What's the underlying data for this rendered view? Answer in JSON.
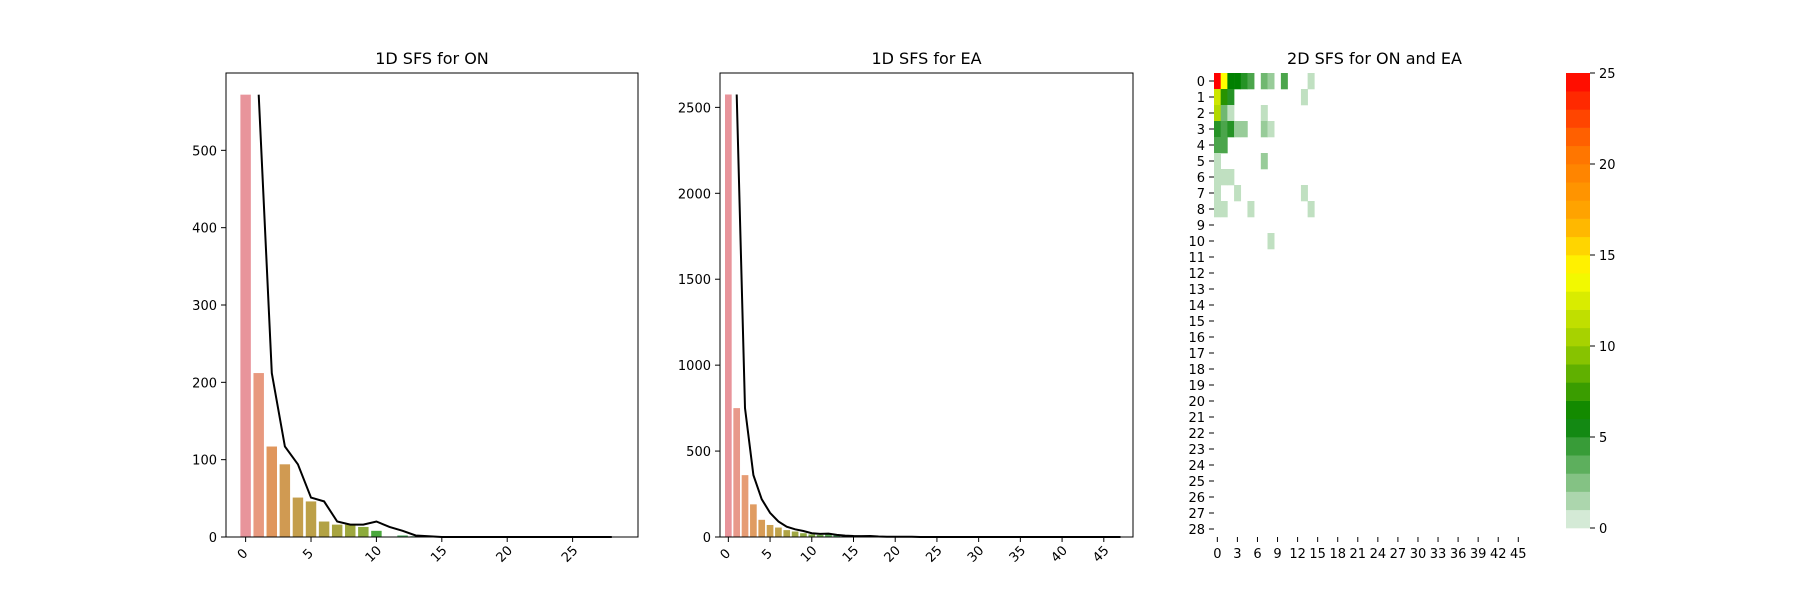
{
  "chart_data": [
    {
      "type": "bar",
      "title": "1D SFS for ON",
      "xlabel": "",
      "ylabel": "",
      "x": [
        0,
        1,
        2,
        3,
        4,
        5,
        6,
        7,
        8,
        9,
        10,
        11,
        12,
        13,
        14,
        15,
        16,
        17,
        18,
        19,
        20,
        21,
        22,
        23,
        24,
        25,
        26,
        27,
        28
      ],
      "values": [
        572,
        212,
        117,
        94,
        51,
        46,
        20,
        16,
        16,
        13,
        8,
        0,
        2,
        1,
        1,
        0,
        0,
        0,
        0,
        0,
        0,
        0,
        0,
        0,
        0,
        0,
        0,
        0,
        0
      ],
      "line": [
        null,
        572,
        212,
        117,
        94,
        51,
        46,
        20,
        16,
        16,
        20,
        13,
        8,
        2,
        1,
        0,
        0,
        0,
        0,
        0,
        0,
        0,
        0,
        0,
        0,
        0,
        0,
        0,
        0
      ],
      "xticks": [
        0,
        5,
        10,
        15,
        20,
        25
      ],
      "yticks": [
        0,
        100,
        200,
        300,
        400,
        500
      ],
      "xlim": [
        -1.5,
        30
      ],
      "ylim": [
        0,
        600
      ],
      "bar_colors": [
        "#e8949b",
        "#e8997f",
        "#e0965c",
        "#d09a52",
        "#c49e4c",
        "#bca048",
        "#b2a244",
        "#a8a440",
        "#9ea73e",
        "#8cab3c",
        "#4aa83c",
        "#49a94e",
        "#4aaa60",
        "#4aa970",
        "#4aa880",
        "#4aa88f",
        "#4ca99e",
        "#4ca9ac",
        "#4ea8b8",
        "#52a8c4",
        "#5aa6d0",
        "#66a4da",
        "#74a0e2",
        "#829ce6",
        "#9298ea",
        "#a294ec",
        "#b290ec",
        "#c28cea",
        "#d088e6"
      ],
      "line_color": "#000000"
    },
    {
      "type": "bar",
      "title": "1D SFS for EA",
      "xlabel": "",
      "ylabel": "",
      "x": [
        0,
        1,
        2,
        3,
        4,
        5,
        6,
        7,
        8,
        9,
        10,
        11,
        12,
        13,
        14,
        15,
        16,
        17,
        18,
        19,
        20,
        21,
        22,
        23,
        24,
        25,
        26,
        27,
        28,
        29,
        30,
        31,
        32,
        33,
        34,
        35,
        36,
        37,
        38,
        39,
        40,
        41,
        42,
        43,
        44,
        45,
        46,
        47
      ],
      "values": [
        2575,
        750,
        360,
        190,
        100,
        70,
        55,
        40,
        32,
        22,
        15,
        12,
        16,
        10,
        6,
        5,
        3,
        4,
        2,
        2,
        1,
        1,
        1,
        0,
        0,
        0,
        0,
        0,
        0,
        0,
        0,
        0,
        0,
        0,
        0,
        0,
        0,
        0,
        0,
        0,
        0,
        0,
        0,
        0,
        0,
        0,
        0,
        0
      ],
      "line": [
        null,
        2575,
        750,
        360,
        220,
        140,
        90,
        60,
        45,
        35,
        22,
        18,
        20,
        12,
        8,
        6,
        5,
        6,
        3,
        2,
        2,
        1,
        1,
        0,
        0,
        0,
        0,
        0,
        0,
        0,
        0,
        0,
        0,
        0,
        0,
        0,
        0,
        0,
        0,
        0,
        0,
        0,
        0,
        0,
        0,
        0,
        0,
        0
      ],
      "xticks": [
        0,
        5,
        10,
        15,
        20,
        25,
        30,
        35,
        40,
        45
      ],
      "yticks": [
        0,
        500,
        1000,
        1500,
        2000,
        2500
      ],
      "xlim": [
        -1,
        48.5
      ],
      "ylim": [
        0,
        2700
      ],
      "bar_colors": [
        "#e8949b",
        "#e8998a",
        "#e69c74",
        "#e09c62",
        "#d89c56",
        "#cca04e",
        "#bfa24a",
        "#b0a446",
        "#a0a744",
        "#90aa42",
        "#80ac44",
        "#6eae4a",
        "#5cae56",
        "#4cae64",
        "#46ae74",
        "#44ad84",
        "#44ad94",
        "#46aca2",
        "#48abb0",
        "#4caabc",
        "#54a8c6",
        "#5ea6d0",
        "#6aa3d8",
        "#78a0de",
        "#869ce4",
        "#9498e8",
        "#a294ea",
        "#b090ea",
        "#be8ce8",
        "#ca89e4",
        "#d486de",
        "#dc85d6",
        "#e286cc",
        "#e688c2",
        "#e88ab6",
        "#e88dab",
        "#e890a2",
        "#e8939a",
        "#e89698",
        "#e89896",
        "#e89a94",
        "#e89c92",
        "#e89e90",
        "#e8a08e",
        "#e8a28c",
        "#e8a48a",
        "#e8a688",
        "#e8a886"
      ],
      "line_color": "#000000"
    },
    {
      "type": "heatmap",
      "title": "2D SFS for ON and EA",
      "xlabel": "",
      "ylabel": "",
      "rows": 29,
      "cols": 48,
      "yticks": [
        0,
        1,
        2,
        3,
        4,
        5,
        6,
        7,
        8,
        9,
        10,
        11,
        12,
        13,
        14,
        15,
        16,
        17,
        18,
        19,
        20,
        21,
        22,
        23,
        24,
        25,
        26,
        27,
        28
      ],
      "xticks": [
        0,
        3,
        6,
        9,
        12,
        15,
        18,
        21,
        24,
        27,
        30,
        33,
        36,
        39,
        42,
        45
      ],
      "cells": [
        [
          0,
          0,
          25
        ],
        [
          0,
          1,
          14
        ],
        [
          0,
          2,
          6
        ],
        [
          0,
          3,
          6
        ],
        [
          0,
          4,
          5
        ],
        [
          0,
          5,
          4
        ],
        [
          0,
          7,
          3
        ],
        [
          0,
          8,
          2
        ],
        [
          0,
          10,
          4
        ],
        [
          0,
          14,
          1
        ],
        [
          1,
          0,
          12
        ],
        [
          1,
          1,
          7
        ],
        [
          1,
          2,
          5
        ],
        [
          1,
          13,
          1
        ],
        [
          2,
          0,
          11
        ],
        [
          2,
          1,
          3
        ],
        [
          2,
          2,
          1
        ],
        [
          2,
          7,
          1
        ],
        [
          3,
          0,
          5
        ],
        [
          3,
          1,
          4
        ],
        [
          3,
          2,
          5
        ],
        [
          3,
          3,
          2
        ],
        [
          3,
          4,
          2
        ],
        [
          3,
          7,
          2
        ],
        [
          3,
          8,
          1
        ],
        [
          4,
          0,
          4
        ],
        [
          4,
          1,
          4
        ],
        [
          5,
          0,
          1
        ],
        [
          5,
          7,
          2
        ],
        [
          6,
          0,
          1
        ],
        [
          6,
          1,
          1
        ],
        [
          6,
          2,
          1
        ],
        [
          7,
          0,
          1
        ],
        [
          7,
          3,
          1
        ],
        [
          7,
          13,
          1
        ],
        [
          8,
          0,
          1
        ],
        [
          8,
          1,
          1
        ],
        [
          8,
          5,
          1
        ],
        [
          8,
          14,
          1
        ],
        [
          10,
          8,
          1
        ]
      ],
      "colorbar_ticks": [
        0,
        5,
        10,
        15,
        20,
        25
      ],
      "vmin": 0,
      "vmax": 25
    }
  ]
}
